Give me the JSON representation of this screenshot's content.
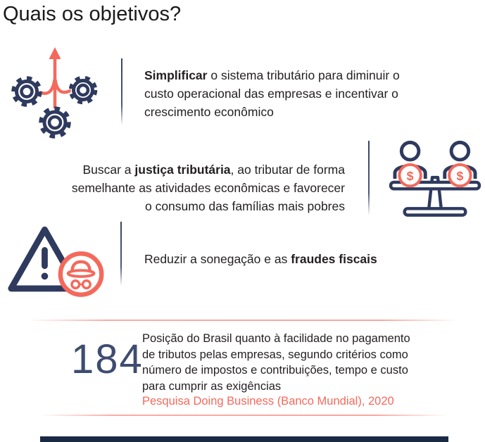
{
  "title": "Quais os objetivos?",
  "objectives": [
    {
      "icon": "gears-merge-icon",
      "align": "left",
      "lines": [
        [
          {
            "t": "Simplificar",
            "b": true
          },
          {
            "t": " o sistema tributário para diminuir o",
            "b": false
          }
        ],
        [
          {
            "t": "custo operacional das empresas e incentivar o",
            "b": false
          }
        ],
        [
          {
            "t": "crescimento econômico",
            "b": false
          }
        ]
      ]
    },
    {
      "icon": "equality-balance-icon",
      "align": "right",
      "lines": [
        [
          {
            "t": "Buscar a ",
            "b": false
          },
          {
            "t": "justiça tributária",
            "b": true
          },
          {
            "t": ", ao tributar de forma",
            "b": false
          }
        ],
        [
          {
            "t": "semelhante as atividades econômicas e favorecer",
            "b": false
          }
        ],
        [
          {
            "t": "o consumo das famílias mais pobres",
            "b": false
          }
        ]
      ]
    },
    {
      "icon": "fraud-warning-icon",
      "align": "left",
      "lines": [
        [
          {
            "t": "Reduzir a sonegação e as ",
            "b": false
          },
          {
            "t": "fraudes fiscais",
            "b": true
          }
        ]
      ]
    }
  ],
  "ranking": {
    "number": "184",
    "description_lines": [
      "Posição do Brasil quanto à facilidade no pagamento",
      "de tributos pelas empresas, segundo critérios como",
      "número de impostos e contribuições, tempo e custo",
      "para cumprir as exigências"
    ],
    "source": "Pesquisa Doing Business (Banco Mundial), 2020"
  },
  "icon_symbols": {
    "dollar": "$"
  },
  "colors": {
    "navy": "#2e3a5e",
    "coral": "#f4695c",
    "text": "#231f20",
    "number_navy": "#3e4c70",
    "bottom_bar": "#1b2a44"
  }
}
